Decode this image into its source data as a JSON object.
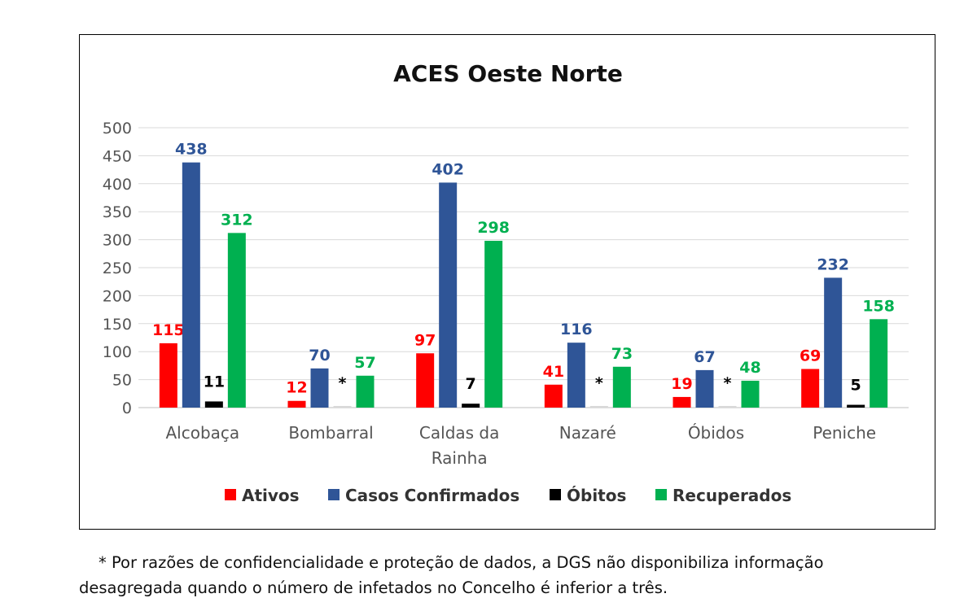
{
  "chart_data": {
    "type": "bar",
    "title": "ACES Oeste Norte",
    "categories": [
      [
        "Alcobaça"
      ],
      [
        "Bombarral"
      ],
      [
        "Caldas da",
        "Rainha"
      ],
      [
        "Nazaré"
      ],
      [
        "Óbidos"
      ],
      [
        "Peniche"
      ]
    ],
    "ylim": [
      0,
      500
    ],
    "yticks": [
      "0",
      "50",
      "100",
      "150",
      "200",
      "250",
      "300",
      "350",
      "400",
      "450",
      "500"
    ],
    "grid": true,
    "legend_position": "bottom",
    "series": [
      {
        "name": "Ativos",
        "color": "#ff0000",
        "values": [
          115,
          12,
          97,
          41,
          19,
          69
        ],
        "labels": [
          "115",
          "12",
          "97",
          "41",
          "19",
          "69"
        ]
      },
      {
        "name": "Casos Confirmados",
        "color": "#2f5597",
        "values": [
          438,
          70,
          402,
          116,
          67,
          232
        ],
        "labels": [
          "438",
          "70",
          "402",
          "116",
          "67",
          "232"
        ]
      },
      {
        "name": "Óbitos",
        "color": "#000000",
        "values": [
          11,
          null,
          7,
          null,
          null,
          5
        ],
        "labels": [
          "11",
          "*",
          "7",
          "*",
          "*",
          "5"
        ]
      },
      {
        "name": "Recuperados",
        "color": "#00b050",
        "values": [
          312,
          57,
          298,
          73,
          48,
          158
        ],
        "labels": [
          "312",
          "57",
          "298",
          "73",
          "48",
          "158"
        ]
      }
    ]
  },
  "footnote": {
    "line1": "* Por razões de confidencialidade e proteção de dados, a DGS não disponibiliza informação",
    "line2": "desagregada quando o número de infetados no Concelho é inferior a três."
  }
}
